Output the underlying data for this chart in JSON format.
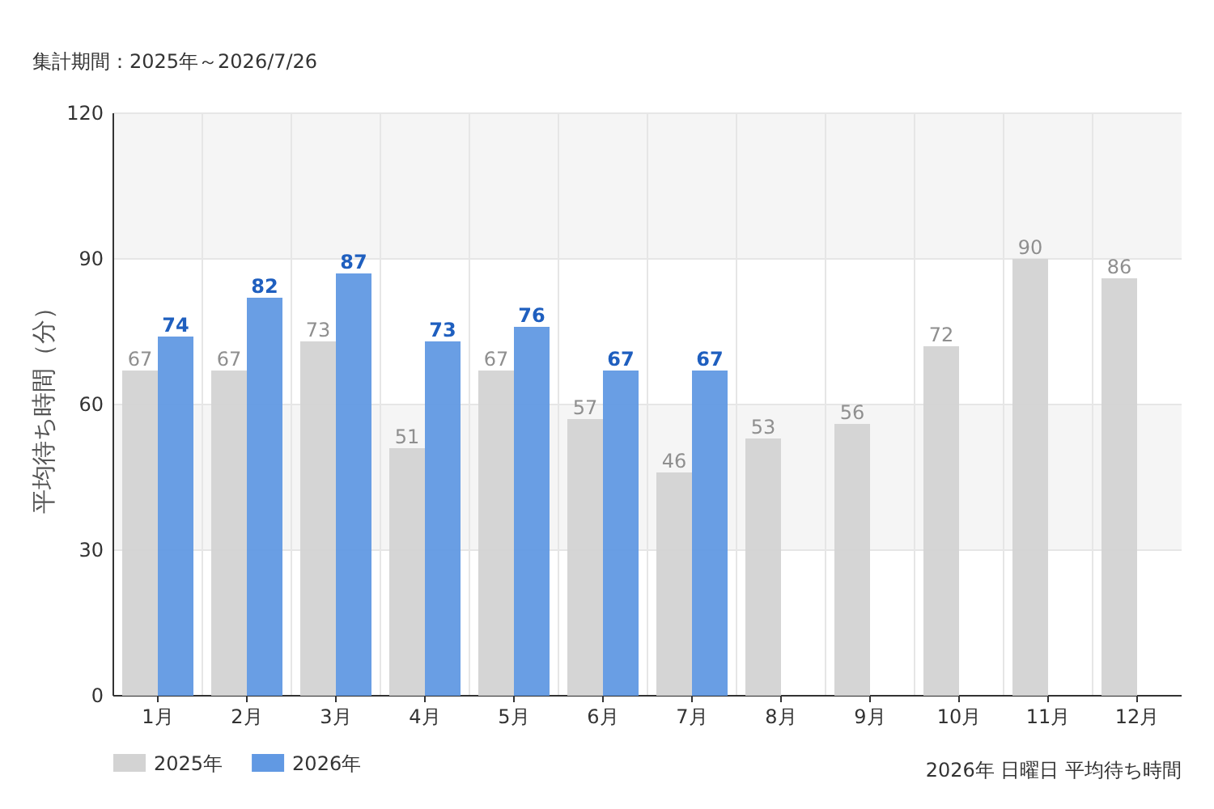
{
  "chart_data": {
    "type": "bar",
    "title": "集計期間：2025年～2026/7/26",
    "ylabel": "平均待ち時間（分）",
    "categories": [
      "1月",
      "2月",
      "3月",
      "4月",
      "5月",
      "6月",
      "7月",
      "8月",
      "9月",
      "10月",
      "11月",
      "12月"
    ],
    "series": [
      {
        "name": "2025年",
        "color": "#d3d3d3",
        "values": [
          67,
          67,
          73,
          51,
          67,
          57,
          46,
          53,
          56,
          72,
          90,
          86
        ]
      },
      {
        "name": "2026年",
        "color": "#6199e3",
        "values": [
          74,
          82,
          87,
          73,
          76,
          67,
          67,
          null,
          null,
          null,
          null,
          null
        ]
      }
    ],
    "ylim": [
      0,
      120
    ],
    "yticks": [
      0,
      30,
      60,
      90,
      120
    ],
    "bands": [
      {
        "axis": "y",
        "from": 30,
        "to": 60,
        "color": "#f5f5f5"
      },
      {
        "axis": "y",
        "from": 90,
        "to": 120,
        "color": "#f5f5f5"
      }
    ],
    "grid": true,
    "legend": "bottom left",
    "data_labels": true,
    "annotations": [
      "2026年 日曜日 平均待ち時間"
    ]
  }
}
